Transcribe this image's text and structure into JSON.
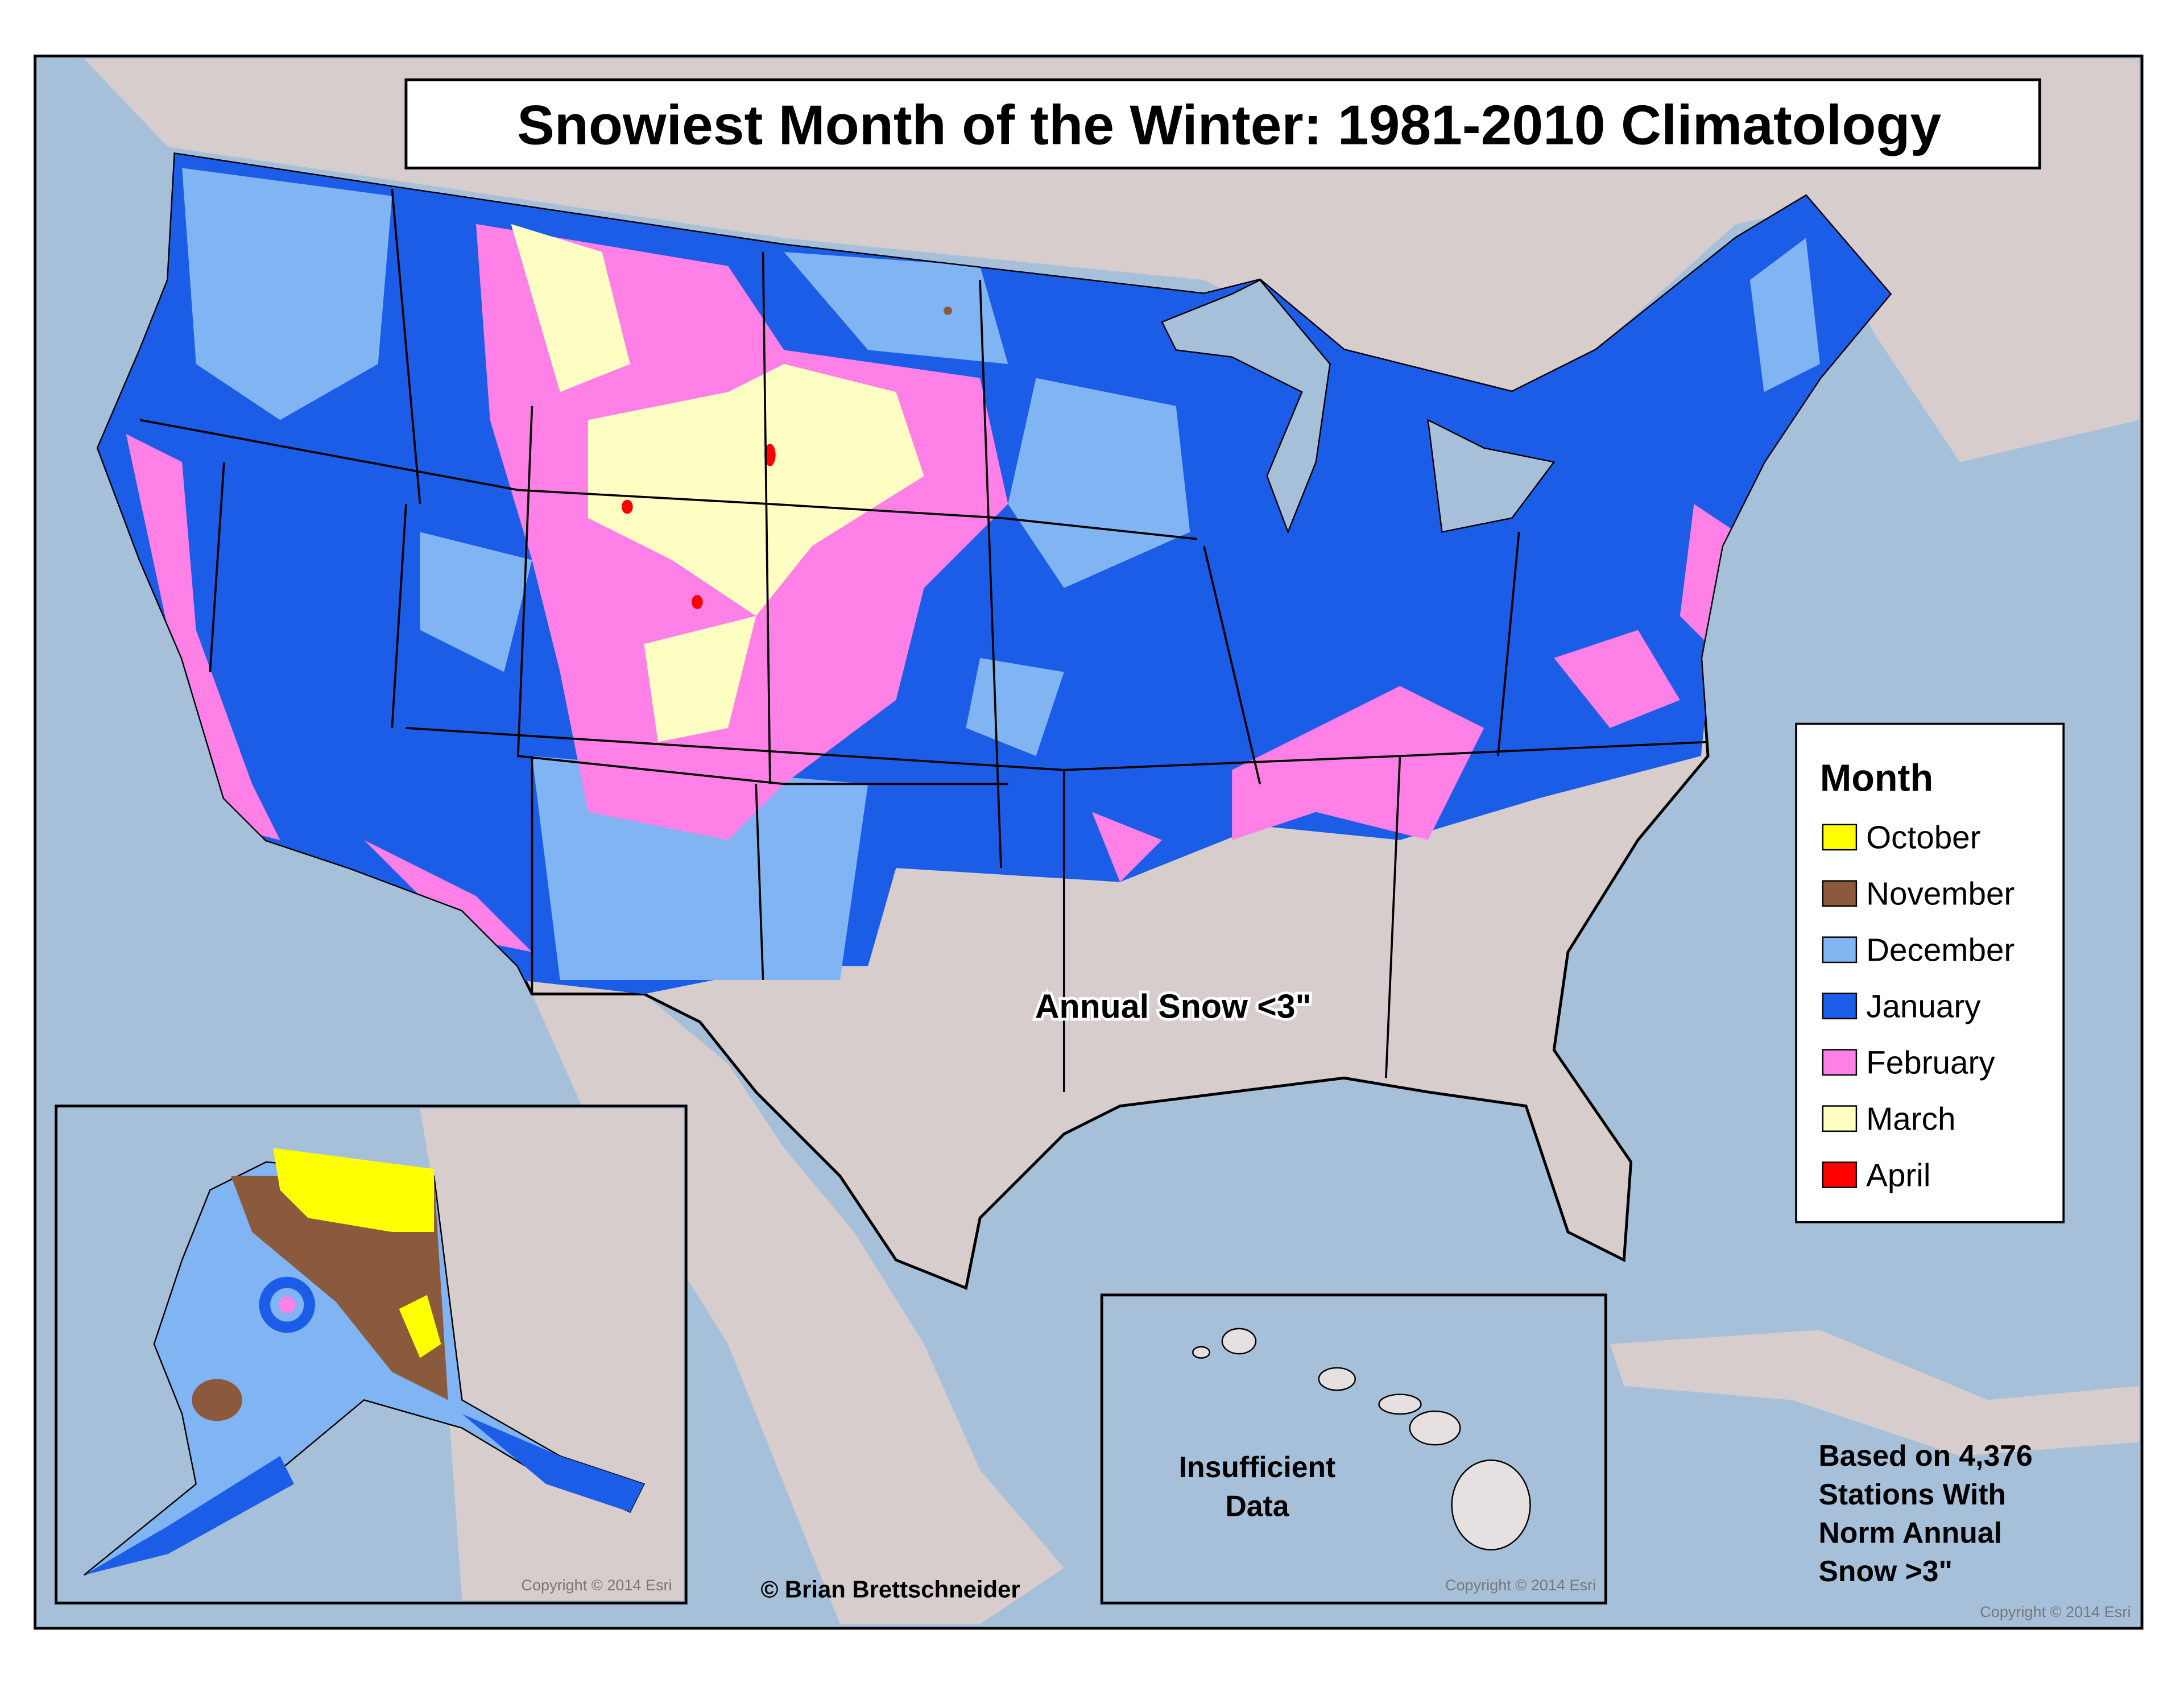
{
  "title": "Snowiest Month of the Winter: 1981-2010 Climatology",
  "legend": {
    "title": "Month",
    "items": [
      {
        "label": "October",
        "color": "#ffff00"
      },
      {
        "label": "November",
        "color": "#8b5a3c"
      },
      {
        "label": "December",
        "color": "#80b4f2"
      },
      {
        "label": "January",
        "color": "#1c5de8"
      },
      {
        "label": "February",
        "color": "#ff80e6"
      },
      {
        "label": "March",
        "color": "#ffffc4"
      },
      {
        "label": "April",
        "color": "#ff0000"
      }
    ]
  },
  "annotations": {
    "annual_snow": "Annual Snow <3\"",
    "hawaii": [
      "Insufficient",
      "Data"
    ],
    "stations_note": [
      "Based on 4,376",
      "Stations With",
      "Norm Annual",
      "Snow >3\""
    ]
  },
  "credits": {
    "author": "© Brian Brettschneider",
    "copyright": "Copyright © 2014 Esri"
  }
}
